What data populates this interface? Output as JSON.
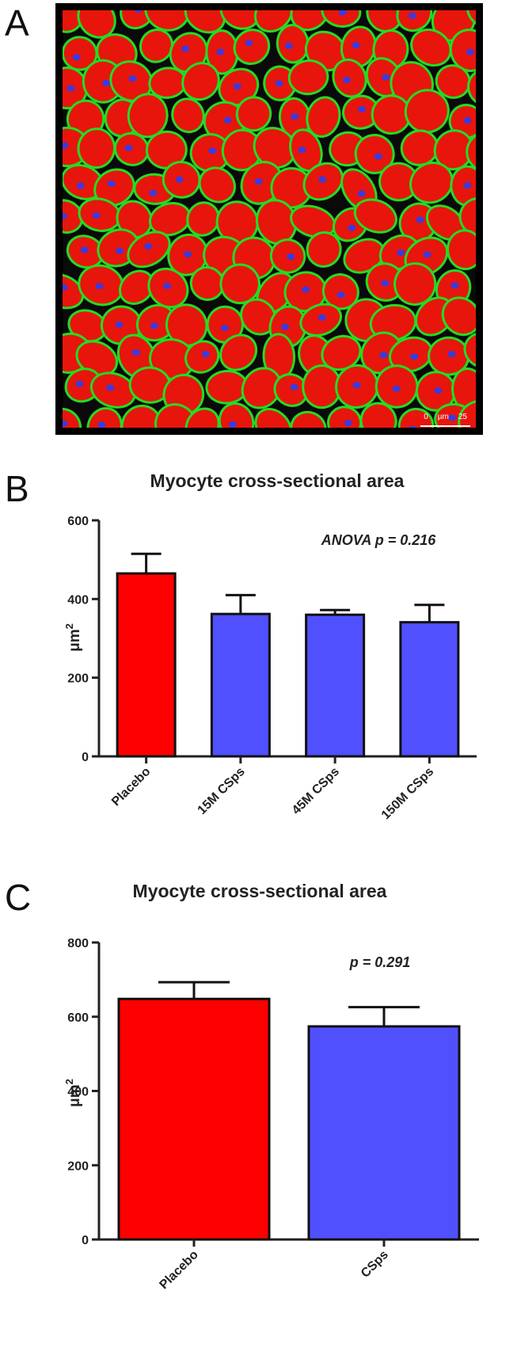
{
  "panels": {
    "a": {
      "letter": "A",
      "scalebar": {
        "start": "0",
        "unit": "µm",
        "end": "25"
      }
    },
    "b": {
      "letter": "B"
    },
    "c": {
      "letter": "C"
    }
  },
  "colors": {
    "placebo": "#ff0000",
    "csps": "#5050ff",
    "membrane": "#22dd22",
    "cytoplasm": "#e8150c",
    "nucleus": "#3a3adf"
  },
  "chart_data": [
    {
      "type": "bar",
      "title": "Myocyte cross-sectional area",
      "categories": [
        "Placebo",
        "15M CSps",
        "45M CSps",
        "150M CSps"
      ],
      "values": [
        465,
        362,
        360,
        341
      ],
      "errors": [
        50,
        48,
        12,
        44
      ],
      "bar_colors": [
        "#ff0000",
        "#5050ff",
        "#5050ff",
        "#5050ff"
      ],
      "ylabel_main": "μm",
      "ylabel_sup": "2",
      "ylim": [
        0,
        600
      ],
      "yticks": [
        0,
        200,
        400,
        600
      ],
      "annotation": "ANOVA p = 0.216"
    },
    {
      "type": "bar",
      "title": "Myocyte cross-sectional area",
      "categories": [
        "Placebo",
        "CSps"
      ],
      "values": [
        648,
        574
      ],
      "errors": [
        45,
        52
      ],
      "bar_colors": [
        "#ff0000",
        "#5050ff"
      ],
      "ylabel_main": "μm",
      "ylabel_sup": "2",
      "ylim": [
        0,
        800
      ],
      "yticks": [
        0,
        200,
        400,
        600,
        800
      ],
      "annotation": "p = 0.291"
    }
  ]
}
